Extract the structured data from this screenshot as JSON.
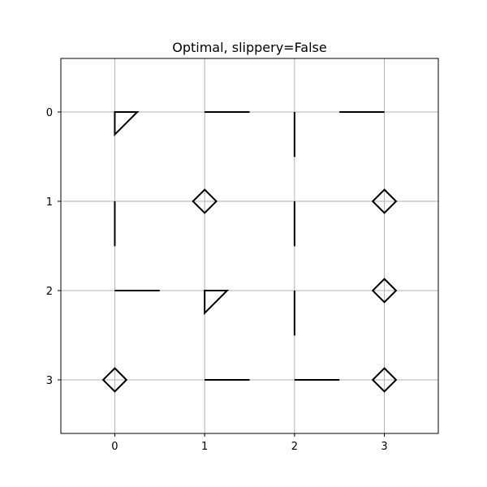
{
  "chart_data": {
    "type": "scatter",
    "title": "Optimal, slippery=False",
    "xlabel": "",
    "ylabel": "",
    "xlim": [
      -0.6,
      3.6
    ],
    "ylim": [
      3.6,
      -0.6
    ],
    "y_inverted": true,
    "grid": true,
    "x_ticks": [
      "0",
      "1",
      "2",
      "3"
    ],
    "y_ticks": [
      "0",
      "1",
      "2",
      "3"
    ],
    "marker_color": "#000000",
    "grid_color": "#b0b0b0",
    "points": [
      {
        "x": 0,
        "y": 0,
        "marker": "triangle"
      },
      {
        "x": 1,
        "y": 0,
        "marker": "hline"
      },
      {
        "x": 2,
        "y": 0,
        "marker": "vline"
      },
      {
        "x": 3,
        "y": 0,
        "marker": "hline-left"
      },
      {
        "x": 0,
        "y": 1,
        "marker": "vline"
      },
      {
        "x": 1,
        "y": 1,
        "marker": "diamond"
      },
      {
        "x": 2,
        "y": 1,
        "marker": "vline"
      },
      {
        "x": 3,
        "y": 1,
        "marker": "diamond"
      },
      {
        "x": 0,
        "y": 2,
        "marker": "hline"
      },
      {
        "x": 1,
        "y": 2,
        "marker": "triangle"
      },
      {
        "x": 2,
        "y": 2,
        "marker": "vline"
      },
      {
        "x": 3,
        "y": 2,
        "marker": "diamond"
      },
      {
        "x": 0,
        "y": 3,
        "marker": "diamond"
      },
      {
        "x": 1,
        "y": 3,
        "marker": "hline"
      },
      {
        "x": 2,
        "y": 3,
        "marker": "hline"
      },
      {
        "x": 3,
        "y": 3,
        "marker": "diamond"
      }
    ]
  }
}
